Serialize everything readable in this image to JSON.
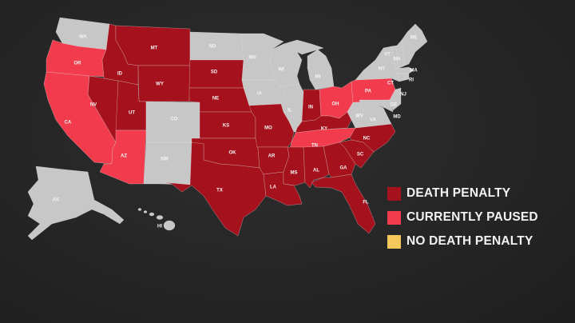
{
  "colors": {
    "death_penalty": "#a5111c",
    "currently_paused": "#f23b4c",
    "no_death_penalty": "#f5c85c",
    "other": "#c7c7c7"
  },
  "legend": [
    {
      "key": "death_penalty",
      "label": "DEATH PENALTY"
    },
    {
      "key": "currently_paused",
      "label": "CURRENTLY PAUSED"
    },
    {
      "key": "no_death_penalty",
      "label": "NO DEATH PENALTY"
    }
  ],
  "states": [
    {
      "code": "WA",
      "status": "other"
    },
    {
      "code": "OR",
      "status": "currently_paused"
    },
    {
      "code": "CA",
      "status": "currently_paused"
    },
    {
      "code": "NV",
      "status": "death_penalty"
    },
    {
      "code": "ID",
      "status": "death_penalty"
    },
    {
      "code": "MT",
      "status": "death_penalty"
    },
    {
      "code": "WY",
      "status": "death_penalty"
    },
    {
      "code": "UT",
      "status": "death_penalty"
    },
    {
      "code": "AZ",
      "status": "currently_paused"
    },
    {
      "code": "CO",
      "status": "other"
    },
    {
      "code": "NM",
      "status": "other"
    },
    {
      "code": "ND",
      "status": "other"
    },
    {
      "code": "SD",
      "status": "death_penalty"
    },
    {
      "code": "NE",
      "status": "death_penalty"
    },
    {
      "code": "KS",
      "status": "death_penalty"
    },
    {
      "code": "OK",
      "status": "death_penalty"
    },
    {
      "code": "TX",
      "status": "death_penalty"
    },
    {
      "code": "MN",
      "status": "other"
    },
    {
      "code": "IA",
      "status": "other"
    },
    {
      "code": "MO",
      "status": "death_penalty"
    },
    {
      "code": "AR",
      "status": "death_penalty"
    },
    {
      "code": "LA",
      "status": "death_penalty"
    },
    {
      "code": "WI",
      "status": "other"
    },
    {
      "code": "IL",
      "status": "other"
    },
    {
      "code": "MI",
      "status": "other"
    },
    {
      "code": "IN",
      "status": "death_penalty"
    },
    {
      "code": "OH",
      "status": "currently_paused"
    },
    {
      "code": "KY",
      "status": "death_penalty"
    },
    {
      "code": "TN",
      "status": "currently_paused"
    },
    {
      "code": "MS",
      "status": "death_penalty"
    },
    {
      "code": "AL",
      "status": "death_penalty"
    },
    {
      "code": "GA",
      "status": "death_penalty"
    },
    {
      "code": "FL",
      "status": "death_penalty"
    },
    {
      "code": "SC",
      "status": "death_penalty"
    },
    {
      "code": "NC",
      "status": "death_penalty"
    },
    {
      "code": "VA",
      "status": "other"
    },
    {
      "code": "WV",
      "status": "other"
    },
    {
      "code": "PA",
      "status": "currently_paused"
    },
    {
      "code": "NY",
      "status": "other"
    },
    {
      "code": "MD",
      "status": "other"
    },
    {
      "code": "DE",
      "status": "other"
    },
    {
      "code": "NJ",
      "status": "other"
    },
    {
      "code": "CT",
      "status": "other"
    },
    {
      "code": "RI",
      "status": "other"
    },
    {
      "code": "MA",
      "status": "other"
    },
    {
      "code": "VT",
      "status": "other"
    },
    {
      "code": "NH",
      "status": "other"
    },
    {
      "code": "ME",
      "status": "other"
    },
    {
      "code": "AK",
      "status": "other"
    },
    {
      "code": "HI",
      "status": "other"
    }
  ]
}
